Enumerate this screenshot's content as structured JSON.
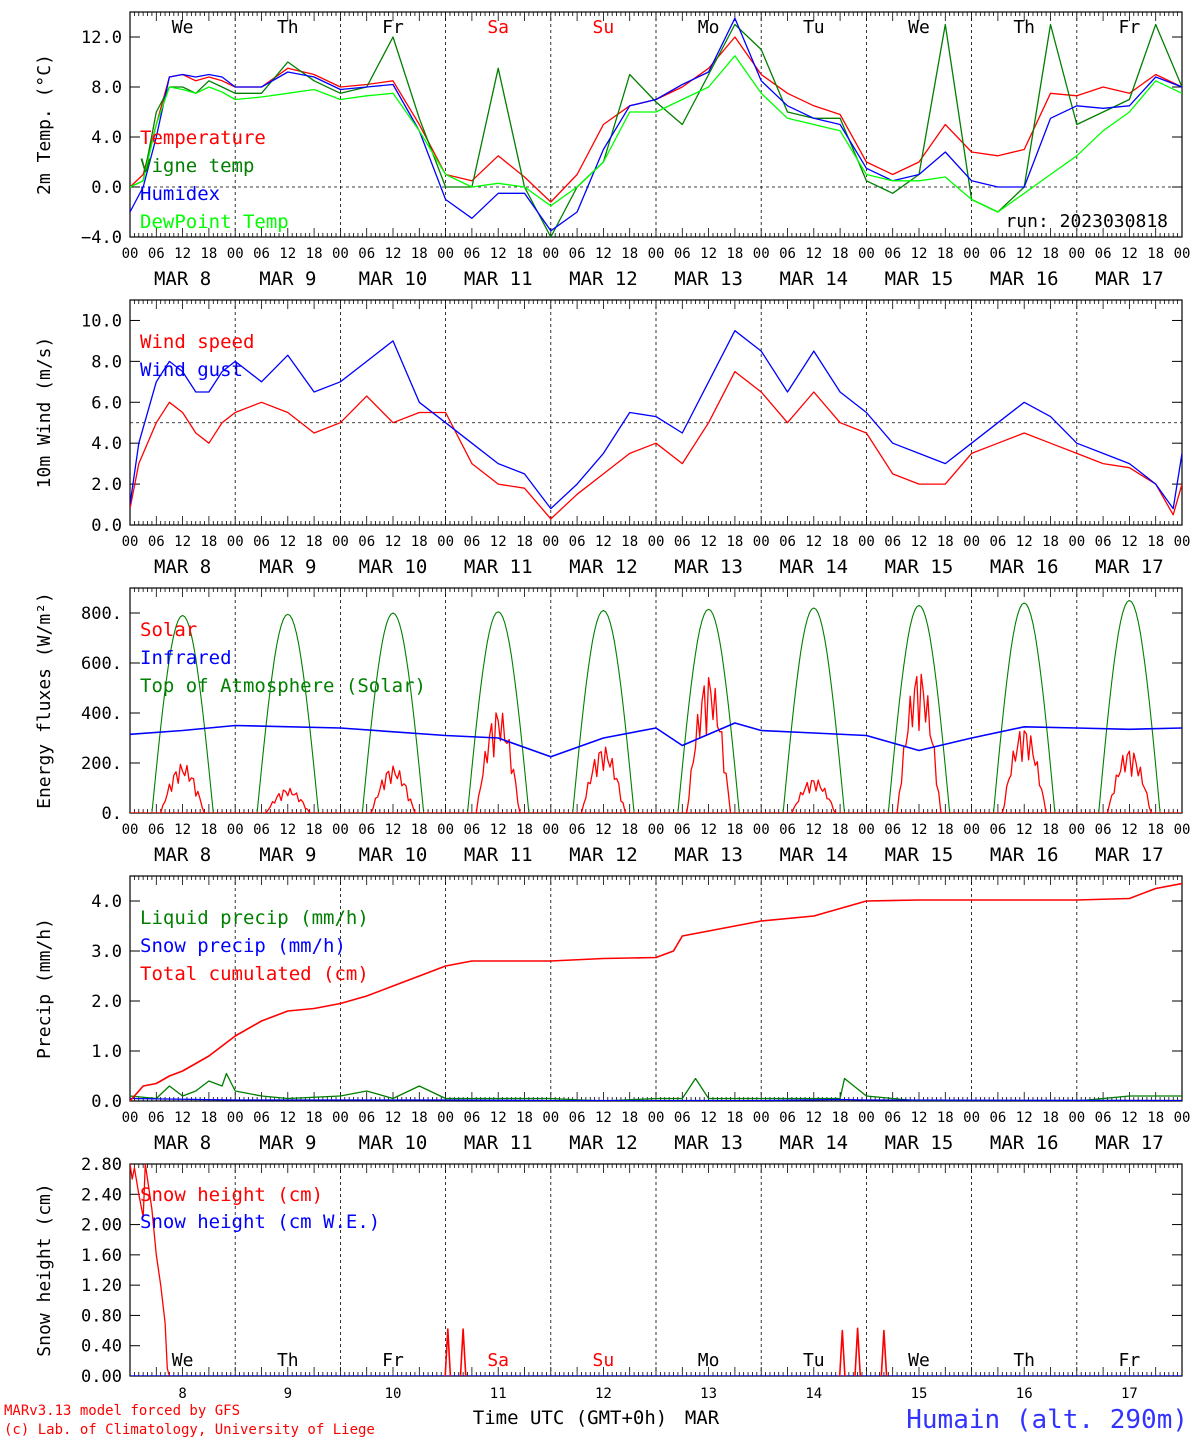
{
  "run_label": "run: 2023030818",
  "station": "Humain (alt. 290m)",
  "credits": [
    "MARv3.13 model forced by GFS",
    "(c) Lab. of Climatology, University of Liege"
  ],
  "x_axis_title": "Time UTC (GMT+0h)",
  "x_axis_month": "MAR",
  "hour_ticks": [
    "00",
    "06",
    "12",
    "18"
  ],
  "dates": [
    "MAR  8",
    "MAR  9",
    "MAR 10",
    "MAR 11",
    "MAR 12",
    "MAR 13",
    "MAR 14",
    "MAR 15",
    "MAR 16",
    "MAR 17"
  ],
  "weekdays": [
    "We",
    "Th",
    "Fr",
    "Sa",
    "Su",
    "Mo",
    "Tu",
    "We",
    "Th",
    "Fr"
  ],
  "weekend_days": [
    "Sa",
    "Su"
  ],
  "day_numbers": [
    "8",
    "9",
    "10",
    "11",
    "12",
    "13",
    "14",
    "15",
    "16",
    "17"
  ],
  "colors": {
    "red": "#ff0000",
    "green": "#007f00",
    "blue": "#0000ff",
    "lime": "#00ff00",
    "black": "#000000"
  },
  "chart_data": [
    {
      "type": "line",
      "ylabel": "2m Temp. (°C)",
      "ylim": [
        -4,
        14
      ],
      "yticks": [
        -4,
        0,
        4,
        8,
        12
      ],
      "ytick_labels": [
        "−4.0",
        "0.0",
        "4.0",
        "8.0",
        "12.0"
      ],
      "ref_line": 0,
      "x_unit": "hours since MAR 8 00 UTC",
      "series": [
        {
          "name": "Temperature",
          "color": "#ff0000",
          "x": [
            0,
            3,
            6,
            9,
            12,
            15,
            18,
            21,
            24,
            30,
            36,
            42,
            48,
            54,
            60,
            66,
            72,
            78,
            84,
            90,
            96,
            102,
            108,
            114,
            120,
            126,
            132,
            138,
            144,
            150,
            156,
            162,
            168,
            174,
            180,
            186,
            192,
            198,
            204,
            210,
            216,
            222,
            228,
            234,
            240
          ],
          "y": [
            0,
            1,
            5,
            8.8,
            9,
            8.5,
            8.8,
            8.5,
            8,
            8,
            9.5,
            9,
            8,
            8.2,
            8.5,
            5,
            1,
            0.5,
            2.5,
            0.8,
            -1.2,
            1,
            5,
            6.5,
            7,
            8,
            9.5,
            12,
            9,
            7.5,
            6.5,
            5.8,
            2,
            1,
            2,
            5,
            2.8,
            2.5,
            3,
            7.5,
            7.3,
            8,
            7.5,
            9,
            8
          ]
        },
        {
          "name": "Vigne temp",
          "color": "#007f00",
          "x": [
            0,
            3,
            6,
            9,
            12,
            15,
            18,
            21,
            24,
            30,
            36,
            42,
            48,
            54,
            60,
            66,
            72,
            78,
            84,
            90,
            96,
            102,
            108,
            114,
            120,
            126,
            132,
            138,
            144,
            150,
            156,
            162,
            168,
            174,
            180,
            186,
            192,
            198,
            204,
            210,
            216,
            222,
            228,
            234,
            240
          ],
          "y": [
            0,
            0.5,
            6,
            8,
            8,
            7.5,
            8.5,
            8,
            7.5,
            7.5,
            10,
            8.5,
            7.5,
            8,
            12,
            5.5,
            0,
            0,
            9.5,
            0,
            -4,
            0,
            2,
            9,
            6.8,
            5,
            9,
            13,
            11,
            6,
            5.5,
            5.5,
            0.5,
            -0.5,
            1,
            13,
            -1,
            -2,
            0,
            13,
            5,
            6,
            7,
            13,
            8
          ]
        },
        {
          "name": "Humidex",
          "color": "#0000ff",
          "x": [
            0,
            3,
            6,
            9,
            12,
            15,
            18,
            21,
            24,
            30,
            36,
            42,
            48,
            54,
            60,
            66,
            72,
            78,
            84,
            90,
            96,
            102,
            108,
            114,
            120,
            126,
            132,
            138,
            144,
            150,
            156,
            162,
            168,
            174,
            180,
            186,
            192,
            198,
            204,
            210,
            216,
            222,
            228,
            234,
            240
          ],
          "y": [
            -2,
            0,
            4,
            8.8,
            9,
            8.8,
            9,
            8.8,
            8,
            8,
            9.2,
            8.8,
            7.8,
            8,
            8.2,
            4.5,
            -1,
            -2.5,
            -0.5,
            -0.5,
            -3.5,
            -2,
            3,
            6.5,
            7,
            8.2,
            9.2,
            13.5,
            8.5,
            6.5,
            5.5,
            5,
            1.5,
            0.5,
            1,
            2.8,
            0.5,
            0,
            0,
            5.5,
            6.5,
            6.3,
            6.5,
            8.8,
            8
          ]
        },
        {
          "name": "DewPoint Temp",
          "color": "#00ff00",
          "x": [
            0,
            3,
            6,
            9,
            12,
            15,
            18,
            21,
            24,
            30,
            36,
            42,
            48,
            54,
            60,
            66,
            72,
            78,
            84,
            90,
            96,
            102,
            108,
            114,
            120,
            126,
            132,
            138,
            144,
            150,
            156,
            162,
            168,
            174,
            180,
            186,
            192,
            198,
            204,
            210,
            216,
            222,
            228,
            234,
            240
          ],
          "y": [
            0,
            0.5,
            5,
            8,
            7.8,
            7.5,
            8,
            7.6,
            7,
            7.2,
            7.5,
            7.8,
            7,
            7.3,
            7.5,
            4.5,
            1,
            0,
            0.3,
            0,
            -1.5,
            0,
            2,
            6,
            6,
            7,
            8,
            10.5,
            7.5,
            5.5,
            5,
            4.5,
            1,
            0.5,
            0.5,
            0.8,
            -1,
            -2,
            -0.5,
            1,
            2.5,
            4.5,
            6,
            8.5,
            7.5
          ]
        }
      ],
      "legend": [
        "Temperature",
        "Vigne temp",
        "Humidex",
        "DewPoint Temp"
      ],
      "legend_colors": [
        "#ff0000",
        "#007f00",
        "#0000ff",
        "#00ff00"
      ],
      "legend_placement": "top-left"
    },
    {
      "type": "line",
      "ylabel": "10m Wind (m/s)",
      "ylim": [
        0,
        11
      ],
      "yticks": [
        0,
        2,
        4,
        6,
        8,
        10
      ],
      "ytick_labels": [
        "0.0",
        "2.0",
        "4.0",
        "6.0",
        "8.0",
        "10.0"
      ],
      "ref_line": 5,
      "series": [
        {
          "name": "Wind speed",
          "color": "#ff0000",
          "x": [
            0,
            2,
            6,
            9,
            12,
            15,
            18,
            21,
            24,
            30,
            36,
            42,
            48,
            54,
            60,
            66,
            72,
            78,
            84,
            90,
            96,
            102,
            108,
            114,
            120,
            126,
            132,
            138,
            144,
            150,
            156,
            162,
            168,
            174,
            180,
            186,
            192,
            198,
            204,
            210,
            216,
            222,
            228,
            234,
            238,
            240
          ],
          "y": [
            0.8,
            3,
            5,
            6,
            5.5,
            4.5,
            4,
            5,
            5.5,
            6,
            5.5,
            4.5,
            5,
            6.3,
            5,
            5.5,
            5.5,
            3,
            2,
            1.8,
            0.3,
            1.5,
            2.5,
            3.5,
            4,
            3,
            5,
            7.5,
            6.5,
            5,
            6.5,
            5,
            4.5,
            2.5,
            2,
            2,
            3.5,
            4,
            4.5,
            4,
            3.5,
            3,
            2.8,
            2,
            0.5,
            2
          ]
        },
        {
          "name": "Wind gust",
          "color": "#0000ff",
          "x": [
            0,
            2,
            6,
            9,
            12,
            15,
            18,
            21,
            24,
            30,
            36,
            42,
            48,
            54,
            60,
            66,
            72,
            78,
            84,
            90,
            96,
            102,
            108,
            114,
            120,
            126,
            132,
            138,
            144,
            150,
            156,
            162,
            168,
            174,
            180,
            186,
            192,
            198,
            204,
            210,
            216,
            222,
            228,
            234,
            238,
            240
          ],
          "y": [
            1,
            4,
            7,
            8,
            7.5,
            6.5,
            6.5,
            7.5,
            8,
            7,
            8.3,
            6.5,
            7,
            8,
            9,
            6,
            5,
            4,
            3,
            2.5,
            0.8,
            2,
            3.5,
            5.5,
            5.3,
            4.5,
            7,
            9.5,
            8.5,
            6.5,
            8.5,
            6.5,
            5.5,
            4,
            3.5,
            3,
            4,
            5,
            6,
            5.3,
            4,
            3.5,
            3,
            2,
            0.8,
            3.5
          ]
        }
      ],
      "legend": [
        "Wind speed",
        "Wind gust"
      ],
      "legend_colors": [
        "#ff0000",
        "#0000ff"
      ],
      "legend_placement": "top-left"
    },
    {
      "type": "line",
      "ylabel": "Energy fluxes (W/m²)",
      "ylim": [
        0,
        900
      ],
      "yticks": [
        0,
        200,
        400,
        600,
        800
      ],
      "ytick_labels": [
        "0.",
        "200.",
        "400.",
        "600.",
        "800."
      ],
      "ref_line": null,
      "toa_peaks": [
        790,
        795,
        800,
        805,
        810,
        815,
        820,
        830,
        840,
        850
      ],
      "solar_peaks": [
        200,
        100,
        190,
        420,
        270,
        560,
        140,
        580,
        350,
        260
      ],
      "infrared": {
        "x": [
          0,
          12,
          24,
          48,
          72,
          84,
          96,
          108,
          120,
          126,
          138,
          144,
          156,
          168,
          180,
          192,
          204,
          216,
          228,
          240
        ],
        "y": [
          315,
          330,
          350,
          340,
          310,
          300,
          225,
          300,
          340,
          270,
          360,
          330,
          320,
          310,
          250,
          300,
          345,
          340,
          335,
          340
        ]
      },
      "series": [
        {
          "name": "Solar",
          "color": "#ff0000"
        },
        {
          "name": "Infrared",
          "color": "#0000ff"
        },
        {
          "name": "Top of Atmosphere (Solar)",
          "color": "#007f00"
        }
      ],
      "legend": [
        "Solar",
        "Infrared",
        "Top of Atmosphere (Solar)"
      ],
      "legend_colors": [
        "#ff0000",
        "#0000ff",
        "#007f00"
      ],
      "legend_placement": "top-left"
    },
    {
      "type": "line",
      "ylabel": "Precip (mm/h)",
      "ylim": [
        0,
        4.5
      ],
      "yticks": [
        0,
        1,
        2,
        3,
        4
      ],
      "ytick_labels": [
        "0.0",
        "1.0",
        "2.0",
        "3.0",
        "4.0"
      ],
      "ref_line": null,
      "series": [
        {
          "name": "Liquid precip (mm/h)",
          "color": "#007f00",
          "x": [
            0,
            6,
            9,
            12,
            15,
            18,
            21,
            22,
            24,
            30,
            36,
            48,
            54,
            60,
            66,
            72,
            84,
            96,
            108,
            120,
            126,
            129,
            132,
            144,
            156,
            162,
            163,
            168,
            180,
            192,
            204,
            216,
            228,
            240
          ],
          "y": [
            0.1,
            0.05,
            0.3,
            0.1,
            0.2,
            0.4,
            0.3,
            0.55,
            0.2,
            0.1,
            0.05,
            0.1,
            0.2,
            0.05,
            0.3,
            0.05,
            0.05,
            0.05,
            0,
            0.05,
            0.05,
            0.45,
            0.05,
            0.05,
            0.05,
            0.05,
            0.45,
            0.1,
            0,
            0,
            0,
            0,
            0.1,
            0.1
          ]
        },
        {
          "name": "Snow precip (mm/h)",
          "color": "#0000ff",
          "x": [
            0,
            24,
            48,
            72,
            96,
            120,
            144,
            162,
            168,
            240
          ],
          "y": [
            0.05,
            0.02,
            0.02,
            0.02,
            0.01,
            0.01,
            0.01,
            0.03,
            0.02,
            0.01
          ]
        },
        {
          "name": "Total cumulated (cm)",
          "color": "#ff0000",
          "x": [
            0,
            3,
            6,
            9,
            12,
            18,
            24,
            30,
            36,
            42,
            48,
            54,
            60,
            66,
            72,
            78,
            84,
            96,
            108,
            120,
            124,
            126,
            132,
            144,
            156,
            162,
            168,
            180,
            192,
            204,
            216,
            228,
            234,
            240
          ],
          "y": [
            0,
            0.3,
            0.35,
            0.5,
            0.6,
            0.9,
            1.3,
            1.6,
            1.8,
            1.85,
            1.95,
            2.1,
            2.3,
            2.5,
            2.7,
            2.8,
            2.8,
            2.8,
            2.85,
            2.87,
            3.0,
            3.3,
            3.4,
            3.6,
            3.7,
            3.85,
            4.0,
            4.02,
            4.02,
            4.02,
            4.02,
            4.05,
            4.25,
            4.35
          ]
        }
      ],
      "legend": [
        "Liquid precip (mm/h)",
        "Snow precip (mm/h)",
        "Total cumulated (cm)"
      ],
      "legend_colors": [
        "#007f00",
        "#0000ff",
        "#ff0000"
      ],
      "legend_placement": "top-left"
    },
    {
      "type": "line",
      "ylabel": "Snow height (cm)",
      "ylim": [
        0,
        2.8
      ],
      "yticks": [
        0,
        0.4,
        0.8,
        1.2,
        1.6,
        2.0,
        2.4,
        2.8
      ],
      "ytick_labels": [
        "0.00",
        "0.40",
        "0.80",
        "1.20",
        "1.60",
        "2.00",
        "2.40",
        "2.80"
      ],
      "ref_line": null,
      "spikes_x": [
        72.5,
        76,
        162.5,
        166,
        172
      ],
      "spikes_y": [
        0.62,
        0.62,
        0.6,
        0.63,
        0.6
      ],
      "series": [
        {
          "name": "Snow height (cm)",
          "color": "#ff0000",
          "x": [
            0,
            0.5,
            1,
            2,
            3,
            3.5,
            4,
            5,
            6,
            7,
            8,
            8.5,
            9
          ],
          "y": [
            2.8,
            2.6,
            2.75,
            2.4,
            2.1,
            2.8,
            2.6,
            2.2,
            1.6,
            1.2,
            0.7,
            0.1,
            0
          ]
        },
        {
          "name": "Snow height (cm W.E.)",
          "color": "#0000ff",
          "x": [
            0,
            240
          ],
          "y": [
            0,
            0
          ]
        }
      ],
      "legend": [
        "Snow height (cm)",
        "Snow height (cm W.E.)"
      ],
      "legend_colors": [
        "#ff0000",
        "#0000ff"
      ],
      "legend_placement": "top-left"
    }
  ]
}
